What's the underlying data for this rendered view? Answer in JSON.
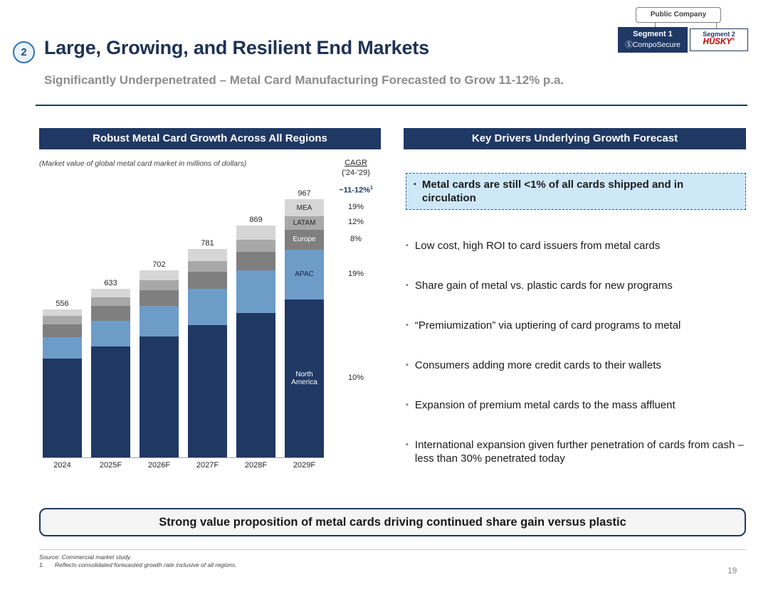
{
  "badges": {
    "public_company": "Public Company",
    "segment1_label": "Segment 1",
    "segment1_brand": "CompoSecure",
    "segment2_label": "Segment 2",
    "segment2_brand": "HUSKY",
    "segment2_brand_mark": "®"
  },
  "icons": {
    "composecure_logo": "Ⓢ"
  },
  "header": {
    "number": "2",
    "title": "Large, Growing, and Resilient End Markets",
    "subtitle": "Significantly Underpenetrated – Metal Card Manufacturing Forecasted to Grow 11-12% p.a."
  },
  "left_panel": {
    "header": "Robust Metal Card Growth Across All Regions",
    "note": "(Market value of global metal card market in millions of dollars)",
    "cagr_header_line1": "CAGR",
    "cagr_header_line2": "('24-'29)",
    "total_cagr": "~11-12%",
    "total_cagr_sup": "1"
  },
  "chart_data": {
    "type": "bar",
    "stacked": true,
    "title": "Robust Metal Card Growth Across All Regions",
    "xlabel": "",
    "ylabel": "Market value of global metal card market ($M)",
    "ylim": [
      0,
      1000
    ],
    "categories": [
      "2024",
      "2025F",
      "2026F",
      "2027F",
      "2028F",
      "2029F"
    ],
    "totals": [
      556,
      633,
      702,
      781,
      869,
      967
    ],
    "series": [
      {
        "name": "North America",
        "color": "#1f3864",
        "label_color": "#ffffff",
        "cagr": "10%",
        "values": [
          370,
          415,
          453,
          496,
          542,
          591
        ]
      },
      {
        "name": "APAC",
        "color": "#6d9cc9",
        "label_color": "#0f2440",
        "cagr": "19%",
        "values": [
          80,
          97,
          115,
          136,
          160,
          189
        ]
      },
      {
        "name": "Europe",
        "color": "#7f7f7f",
        "label_color": "#ffffff",
        "cagr": "8%",
        "values": [
          50,
          55,
          59,
          63,
          68,
          73
        ]
      },
      {
        "name": "LATAM",
        "color": "#a8a8a8",
        "label_color": "#262626",
        "cagr": "12%",
        "values": [
          30,
          34,
          38,
          42,
          47,
          52
        ]
      },
      {
        "name": "MEA",
        "color": "#d6d6d6",
        "label_color": "#262626",
        "cagr": "19%",
        "values": [
          26,
          32,
          37,
          44,
          52,
          62
        ]
      }
    ],
    "total_cagr_label": "~11-12%"
  },
  "right_panel": {
    "header": "Key Drivers Underlying Growth Forecast",
    "highlight": "Metal cards are still <1% of all cards shipped and in circulation",
    "bullets": [
      "Low cost, high ROI to card issuers from metal cards",
      "Share gain of metal vs. plastic cards for new programs",
      "“Premiumization” via uptiering of card programs to metal",
      "Consumers adding more credit cards to their wallets",
      "Expansion of premium metal cards to the mass affluent",
      "International expansion given further penetration of cards from cash – less than 30% penetrated today"
    ]
  },
  "bottom_banner": "Strong value proposition of metal cards driving continued share gain versus plastic",
  "footer": {
    "source": "Source: Commercial market study.",
    "footnote_num": "1.",
    "footnote": "Reflects consolidated forecasted growth rate inclusive of all regions.",
    "page_number": "19"
  }
}
